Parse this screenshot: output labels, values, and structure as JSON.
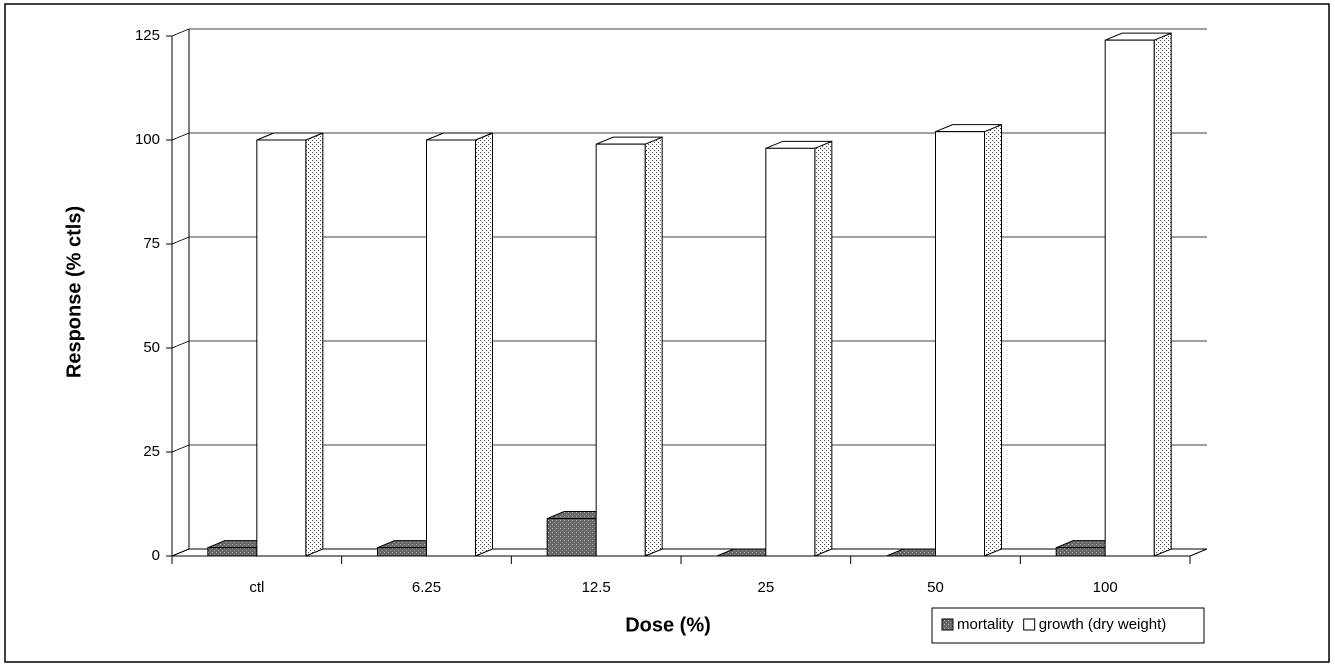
{
  "chart_data": {
    "type": "bar3d",
    "x_label": "Dose (%)",
    "y_label": "Response (% ctls)",
    "categories": [
      "ctl",
      "6.25",
      "12.5",
      "25",
      "50",
      "100"
    ],
    "series": [
      {
        "name": "mortality",
        "color": "#555555",
        "values": [
          2,
          2,
          9,
          0,
          0,
          2
        ]
      },
      {
        "name": "growth (dry weight)",
        "color": "#ffffff",
        "values": [
          100,
          100,
          99,
          98,
          102,
          124
        ]
      }
    ],
    "ylim": [
      0,
      125
    ],
    "yticks": [
      0,
      25,
      50,
      75,
      100,
      125
    ],
    "grid": true,
    "legend": "bottom-right"
  }
}
